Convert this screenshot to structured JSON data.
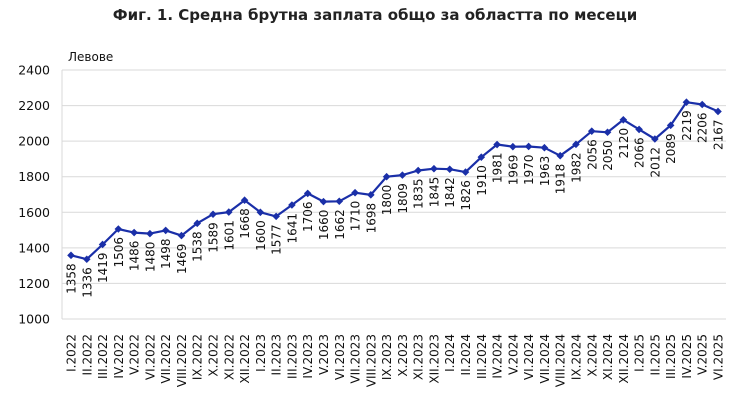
{
  "chart_data": {
    "type": "line",
    "title": "Фиг. 1. Средна брутна заплата общо за областта по месеци",
    "ylabel": "Левове",
    "xlabel": "",
    "ylim": [
      1000,
      2400
    ],
    "yticks": [
      1000,
      1200,
      1400,
      1600,
      1800,
      2000,
      2200,
      2400
    ],
    "grid": true,
    "legend": "none",
    "line_color": "#1a2fa8",
    "categories": [
      "I.2022",
      "II.2022",
      "III.2022",
      "IV.2022",
      "V.2022",
      "VI.2022",
      "VII.2022",
      "VIII.2022",
      "IX.2022",
      "X.2022",
      "XI.2022",
      "XII.2022",
      "I.2023",
      "II.2023",
      "III.2023",
      "IV.2023",
      "V.2023",
      "VI.2023",
      "VII.2023",
      "VIII.2023",
      "IX.2023",
      "X.2023",
      "XI.2023",
      "XII.2023",
      "I.2024",
      "II.2024",
      "III.2024",
      "IV.2024",
      "V.2024",
      "VI.2024",
      "VII.2024",
      "VIII.2024",
      "IX.2024",
      "X.2024",
      "XI.2024",
      "XII.2024",
      "I.2025",
      "II.2025",
      "III.2025",
      "IV.2025",
      "V.2025",
      "VI.2025"
    ],
    "values": [
      1358,
      1336,
      1419,
      1506,
      1486,
      1480,
      1498,
      1469,
      1538,
      1589,
      1601,
      1668,
      1600,
      1577,
      1641,
      1706,
      1660,
      1662,
      1710,
      1698,
      1800,
      1809,
      1835,
      1845,
      1842,
      1826,
      1910,
      1981,
      1969,
      1970,
      1963,
      1918,
      1982,
      2056,
      2050,
      2120,
      2066,
      2012,
      2089,
      2219,
      2206,
      2167
    ]
  }
}
